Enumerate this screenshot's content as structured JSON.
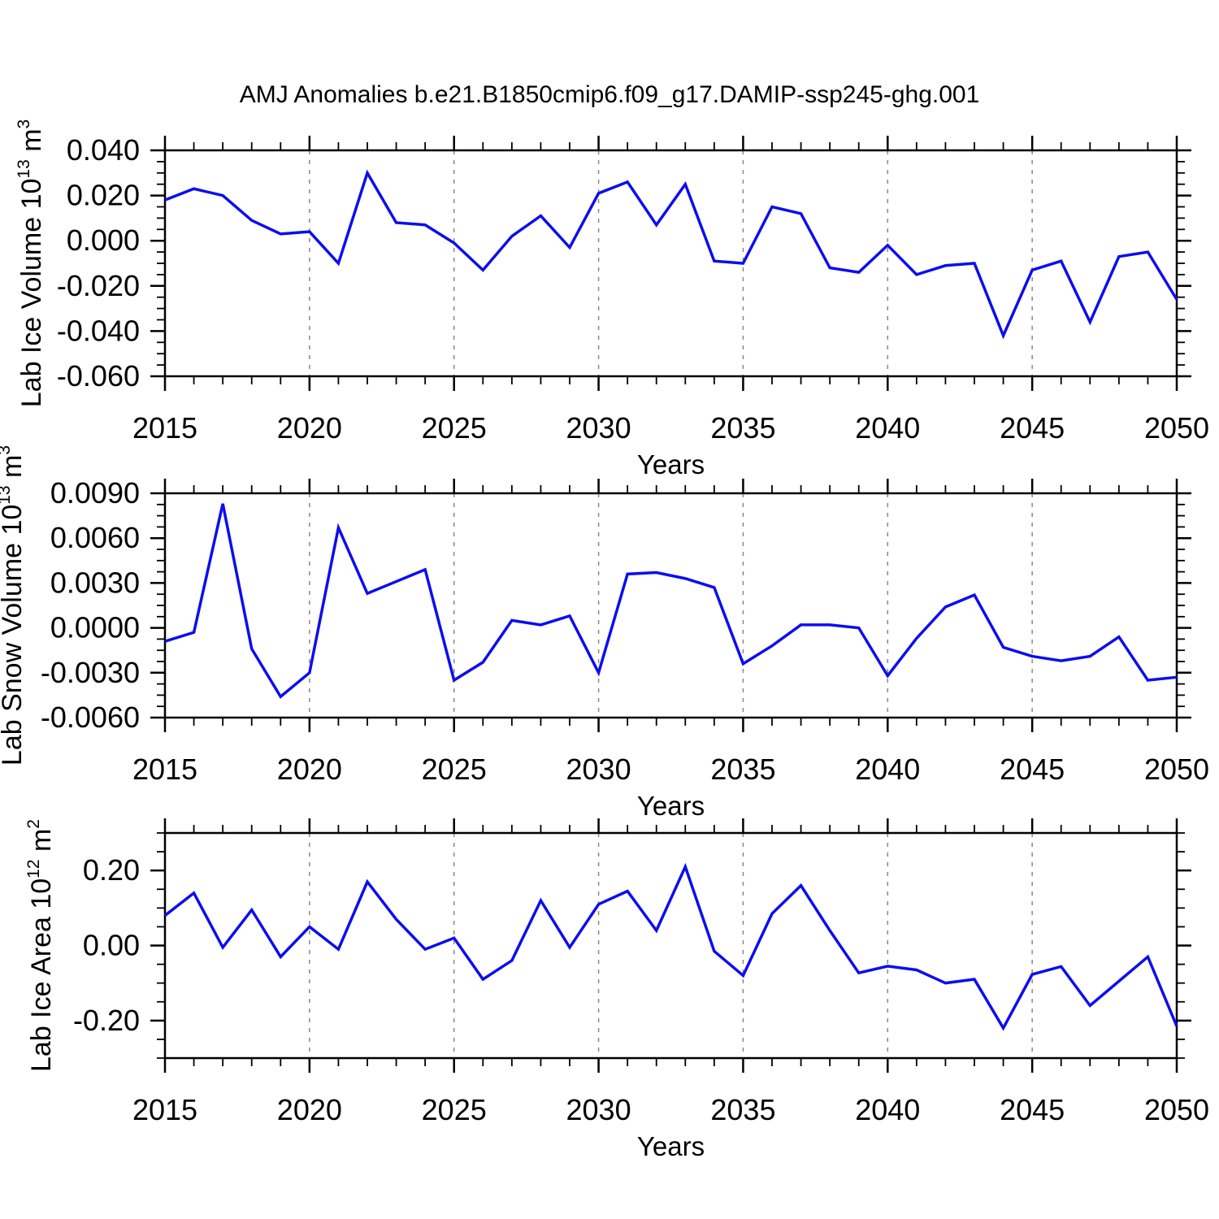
{
  "title": "AMJ Anomalies b.e21.B1850cmip6.f09_g17.DAMIP-ssp245-ghg.001",
  "xlabel": "Years",
  "xtick_labels": [
    "2015",
    "2020",
    "2025",
    "2030",
    "2035",
    "2040",
    "2045",
    "2050"
  ],
  "grid_years": [
    2020,
    2025,
    2030,
    2035,
    2040,
    2045
  ],
  "years": [
    2015,
    2016,
    2017,
    2018,
    2019,
    2020,
    2021,
    2022,
    2023,
    2024,
    2025,
    2026,
    2027,
    2028,
    2029,
    2030,
    2031,
    2032,
    2033,
    2034,
    2035,
    2036,
    2037,
    2038,
    2039,
    2040,
    2041,
    2042,
    2043,
    2044,
    2045,
    2046,
    2047,
    2048,
    2049,
    2050
  ],
  "colors": {
    "line": "#0d0df0",
    "grid": "#888888",
    "axis": "#000000"
  },
  "chart_data": [
    {
      "id": "lab-ice-volume",
      "type": "line",
      "title": "",
      "ylabel": "Lab Ice Volume 10^13 m^3",
      "ylabel_parts": [
        {
          "text": "Lab Ice Volume 10",
          "sup": false
        },
        {
          "text": "13",
          "sup": true
        },
        {
          "text": " m",
          "sup": false
        },
        {
          "text": "3",
          "sup": true
        }
      ],
      "xlabel": "Years",
      "xlim": [
        2015,
        2050
      ],
      "ylim": [
        -0.06,
        0.04
      ],
      "yticks": [
        0.04,
        0.02,
        0.0,
        -0.02,
        -0.04,
        -0.06
      ],
      "ytick_labels": [
        "0.040",
        "0.020",
        "0.000",
        "-0.020",
        "-0.040",
        "-0.060"
      ],
      "y_minor_step": 0.005,
      "values": [
        0.018,
        0.023,
        0.02,
        0.009,
        0.003,
        0.004,
        -0.01,
        0.03,
        0.008,
        0.007,
        -0.001,
        -0.013,
        0.002,
        0.011,
        -0.003,
        0.021,
        0.026,
        0.007,
        0.025,
        -0.009,
        -0.01,
        0.015,
        0.012,
        -0.012,
        -0.014,
        -0.002,
        -0.015,
        -0.011,
        -0.01,
        -0.042,
        -0.013,
        -0.009,
        -0.036,
        -0.007,
        -0.005,
        -0.026
      ]
    },
    {
      "id": "lab-snow-volume",
      "type": "line",
      "title": "",
      "ylabel": "Lab Snow Volume 10^13 m^3",
      "ylabel_parts": [
        {
          "text": "Lab Snow Volume 10",
          "sup": false
        },
        {
          "text": "13",
          "sup": true
        },
        {
          "text": " m",
          "sup": false
        },
        {
          "text": "3",
          "sup": true
        }
      ],
      "xlabel": "Years",
      "xlim": [
        2015,
        2050
      ],
      "ylim": [
        -0.006,
        0.009
      ],
      "yticks": [
        0.009,
        0.006,
        0.003,
        0.0,
        -0.003,
        -0.006
      ],
      "ytick_labels": [
        "0.0090",
        "0.0060",
        "0.0030",
        "0.0000",
        "-0.0030",
        "-0.0060"
      ],
      "y_minor_step": 0.00075,
      "values": [
        -0.0009,
        -0.0003,
        0.0083,
        -0.0014,
        -0.0046,
        -0.003,
        0.0067,
        0.0023,
        0.0031,
        0.0039,
        -0.0035,
        -0.0023,
        0.0005,
        0.0002,
        0.0008,
        -0.003,
        0.0036,
        0.0037,
        0.0033,
        0.0027,
        -0.0024,
        -0.0012,
        0.0002,
        0.0002,
        0.0,
        -0.0032,
        -0.0007,
        0.0014,
        0.0022,
        -0.0013,
        -0.0019,
        -0.0022,
        -0.0019,
        -0.0006,
        -0.0035,
        -0.0033
      ]
    },
    {
      "id": "lab-ice-area",
      "type": "line",
      "title": "",
      "ylabel": "Lab Ice Area 10^12 m^2",
      "ylabel_parts": [
        {
          "text": "Lab Ice Area 10",
          "sup": false
        },
        {
          "text": "12",
          "sup": true
        },
        {
          "text": " m",
          "sup": false
        },
        {
          "text": "2",
          "sup": true
        }
      ],
      "xlabel": "Years",
      "xlim": [
        2015,
        2050
      ],
      "ylim": [
        -0.3,
        0.3
      ],
      "yticks": [
        0.2,
        0.0,
        -0.2
      ],
      "ytick_labels": [
        "0.20",
        "0.00",
        "-0.20"
      ],
      "y_minor_step": 0.05,
      "values": [
        0.08,
        0.14,
        -0.005,
        0.095,
        -0.03,
        0.05,
        -0.01,
        0.17,
        0.07,
        -0.01,
        0.02,
        -0.09,
        -0.04,
        0.12,
        -0.005,
        0.11,
        0.145,
        0.04,
        0.21,
        -0.015,
        -0.08,
        0.085,
        0.16,
        0.04,
        -0.073,
        -0.055,
        -0.065,
        -0.1,
        -0.09,
        -0.22,
        -0.077,
        -0.056,
        -0.16,
        -0.095,
        -0.03,
        -0.215
      ]
    }
  ]
}
